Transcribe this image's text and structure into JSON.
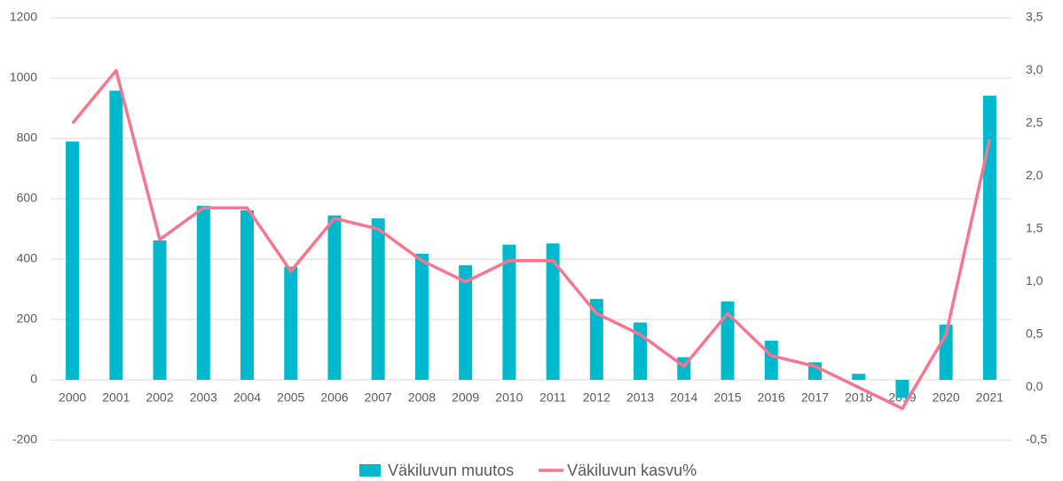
{
  "chart_data": {
    "type": "bar_line",
    "categories": [
      "2000",
      "2001",
      "2002",
      "2003",
      "2004",
      "2005",
      "2006",
      "2007",
      "2008",
      "2009",
      "2010",
      "2011",
      "2012",
      "2013",
      "2014",
      "2015",
      "2016",
      "2017",
      "2018",
      "2019",
      "2020",
      "2021"
    ],
    "series": [
      {
        "name": "Väkiluvun muutos",
        "type": "bar",
        "color": "#00b9cd",
        "axis": "y",
        "values": [
          790,
          958,
          462,
          577,
          562,
          375,
          545,
          535,
          418,
          380,
          448,
          452,
          268,
          190,
          75,
          260,
          130,
          58,
          20,
          -60,
          183,
          942
        ]
      },
      {
        "name": "Väkiluvun kasvu%",
        "type": "line",
        "color": "#f7768e",
        "axis": "y2",
        "values": [
          2.5,
          3.0,
          1.4,
          1.7,
          1.7,
          1.1,
          1.6,
          1.5,
          1.2,
          1.0,
          1.2,
          1.2,
          0.7,
          0.5,
          0.2,
          0.7,
          0.3,
          0.2,
          0.0,
          -0.2,
          0.5,
          2.35
        ]
      }
    ],
    "ylim": [
      -200,
      1200
    ],
    "yticks": [
      -200,
      0,
      200,
      400,
      600,
      800,
      1000,
      1200
    ],
    "y2lim": [
      -0.5,
      3.5
    ],
    "y2ticks": [
      {
        "value": -0.5,
        "label": "-0,5"
      },
      {
        "value": 0,
        "label": "0,0"
      },
      {
        "value": 0.5,
        "label": "0,5"
      },
      {
        "value": 1,
        "label": "1,0"
      },
      {
        "value": 1.5,
        "label": "1,5"
      },
      {
        "value": 2,
        "label": "2,0"
      },
      {
        "value": 2.5,
        "label": "2,5"
      },
      {
        "value": 3,
        "label": "3,0"
      },
      {
        "value": 3.5,
        "label": "3,5"
      }
    ],
    "grid": true,
    "legend": "bottom"
  }
}
